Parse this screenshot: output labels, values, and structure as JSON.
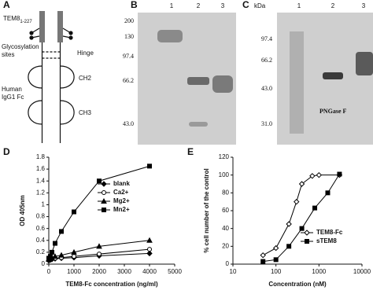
{
  "panel_a": {
    "letter": "A",
    "tem8": "TEM8",
    "tem8_sub": "1-227",
    "glyco": [
      "Glycosylation",
      "sites"
    ],
    "hinge": "Hinge",
    "fc": [
      "Human",
      "IgG1 Fc"
    ],
    "ch2": "CH2",
    "ch3": "CH3"
  },
  "gels": [
    {
      "letter": "B",
      "lanes": [
        "1",
        "2",
        "3"
      ],
      "markers": [
        "200",
        "130",
        "97.4",
        "66.2",
        "43.0"
      ]
    },
    {
      "letter": "C",
      "unit": "kDa",
      "lanes": [
        "1",
        "2",
        "3"
      ],
      "markers": [
        "97.4",
        "66.2",
        "43.0",
        "31.0"
      ],
      "note": "PNGase F"
    }
  ],
  "chart_data": [
    {
      "type": "line",
      "panel": "D",
      "xlabel": "TEM8-Fc concentration (ng/ml)",
      "ylabel": "OD 405nm",
      "x": [
        0,
        62.5,
        125,
        250,
        500,
        1000,
        2000,
        4000
      ],
      "xlim": [
        0,
        5000
      ],
      "xticks": [
        0,
        1000,
        2000,
        3000,
        4000,
        5000
      ],
      "ylim": [
        0,
        1.8
      ],
      "yticks": [
        0,
        0.2,
        0.4,
        0.6,
        0.8,
        1,
        1.2,
        1.4,
        1.6,
        1.8
      ],
      "legend": "upper-left",
      "series": [
        {
          "name": "blank",
          "color": "#000000",
          "marker": "diamond",
          "values": [
            0.06,
            0.07,
            0.08,
            0.09,
            0.1,
            0.11,
            0.14,
            0.18
          ]
        },
        {
          "name": "Ca2+",
          "color": "#000000",
          "marker": "open-circle",
          "values": [
            0.07,
            0.08,
            0.09,
            0.1,
            0.11,
            0.13,
            0.17,
            0.25
          ]
        },
        {
          "name": "Mg2+",
          "color": "#000000",
          "marker": "triangle",
          "values": [
            0.08,
            0.1,
            0.11,
            0.13,
            0.15,
            0.2,
            0.3,
            0.4
          ]
        },
        {
          "name": "Mn2+",
          "color": "#000000",
          "marker": "square",
          "values": [
            0.1,
            0.13,
            0.2,
            0.35,
            0.55,
            0.88,
            1.4,
            1.65
          ]
        }
      ]
    },
    {
      "type": "line",
      "panel": "E",
      "xlabel": "Concentration (nM)",
      "ylabel": "% cell number of the control",
      "xscale": "log",
      "xlim": [
        10,
        10000
      ],
      "xticks": [
        10,
        100,
        1000,
        10000
      ],
      "ylim": [
        0,
        120
      ],
      "yticks": [
        0,
        20,
        40,
        60,
        80,
        100,
        120
      ],
      "legend": "lower-right",
      "series": [
        {
          "name": "TEM8-Fc",
          "color": "#000000",
          "marker": "open-diamond",
          "x": [
            50,
            100,
            200,
            300,
            400,
            700,
            1000,
            3000
          ],
          "values": [
            10,
            18,
            45,
            70,
            90,
            99,
            100,
            100
          ]
        },
        {
          "name": "sTEM8",
          "color": "#000000",
          "marker": "square",
          "x": [
            50,
            100,
            200,
            400,
            800,
            1600,
            3000
          ],
          "values": [
            3,
            5,
            20,
            40,
            63,
            80,
            101
          ]
        }
      ]
    }
  ]
}
